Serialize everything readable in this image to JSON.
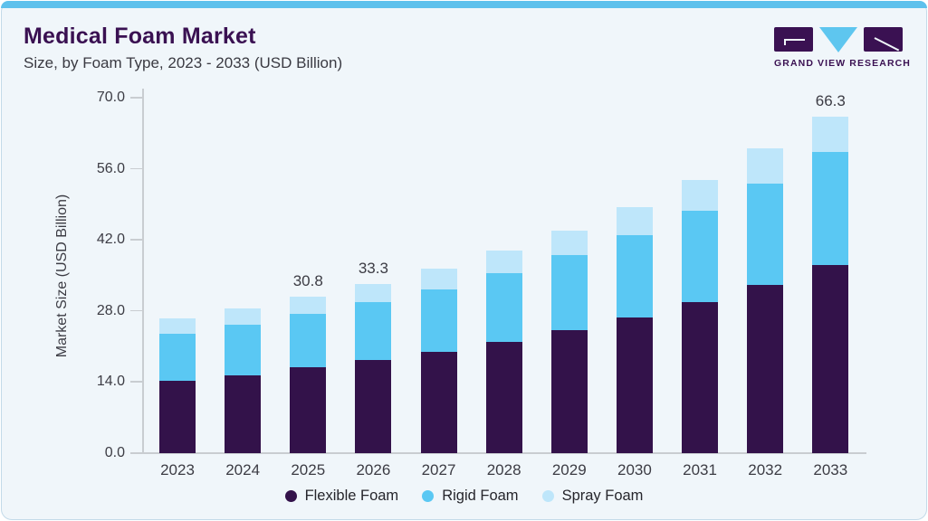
{
  "page": {
    "background": "#FFFFFF",
    "card_background": "#F0F6FA",
    "accent_color": "#5EC1EC",
    "border_color": "#C3DAE9"
  },
  "header": {
    "title": "Medical Foam Market",
    "subtitle": "Size, by Foam Type, 2023 - 2033 (USD Billion)",
    "title_color": "#3A1152",
    "logo_text": "GRAND VIEW RESEARCH"
  },
  "chart_data": {
    "type": "bar",
    "stacked": true,
    "title": "Medical Foam Market",
    "subtitle": "Size, by Foam Type, 2023 - 2033 (USD Billion)",
    "xlabel": "",
    "ylabel": "Market Size (USD Billion)",
    "ylim": [
      0,
      70
    ],
    "grid": false,
    "legend_position": "bottom",
    "axis_color": "#C9CDD1",
    "text_color": "#3C3C44",
    "yticks": [
      {
        "value": 0,
        "label": "0.0"
      },
      {
        "value": 14,
        "label": "14.0"
      },
      {
        "value": 28,
        "label": "28.0"
      },
      {
        "value": 42,
        "label": "42.0"
      },
      {
        "value": 56,
        "label": "56.0"
      },
      {
        "value": 70,
        "label": "70.0"
      }
    ],
    "categories": [
      "2023",
      "2024",
      "2025",
      "2026",
      "2027",
      "2028",
      "2029",
      "2030",
      "2031",
      "2032",
      "2033"
    ],
    "series": [
      {
        "name": "Flexible Foam",
        "color": "#33124A",
        "values": [
          14.2,
          15.4,
          17.0,
          18.3,
          20.0,
          21.9,
          24.3,
          26.7,
          29.7,
          33.2,
          37.1
        ]
      },
      {
        "name": "Rigid Foam",
        "color": "#5AC8F3",
        "values": [
          9.4,
          9.9,
          10.4,
          11.4,
          12.3,
          13.5,
          14.7,
          16.3,
          18.0,
          19.8,
          22.2
        ]
      },
      {
        "name": "Spray Foam",
        "color": "#BEE6FA",
        "values": [
          2.9,
          3.2,
          3.4,
          3.6,
          4.0,
          4.5,
          4.9,
          5.4,
          6.1,
          7.0,
          7.0
        ]
      }
    ],
    "totals": [
      26.5,
      28.5,
      30.8,
      33.3,
      36.3,
      39.9,
      43.9,
      48.4,
      53.8,
      60.0,
      66.3
    ],
    "annotations": [
      {
        "category_index": 2,
        "label": "30.8"
      },
      {
        "category_index": 3,
        "label": "33.3"
      },
      {
        "category_index": 10,
        "label": "66.3"
      }
    ]
  }
}
